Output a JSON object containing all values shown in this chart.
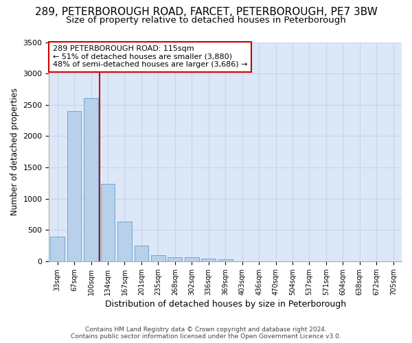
{
  "title_line1": "289, PETERBOROUGH ROAD, FARCET, PETERBOROUGH, PE7 3BW",
  "title_line2": "Size of property relative to detached houses in Peterborough",
  "xlabel": "Distribution of detached houses by size in Peterborough",
  "ylabel": "Number of detached properties",
  "footer_line1": "Contains HM Land Registry data © Crown copyright and database right 2024.",
  "footer_line2": "Contains public sector information licensed under the Open Government Licence v3.0.",
  "bins": [
    "33sqm",
    "67sqm",
    "100sqm",
    "134sqm",
    "167sqm",
    "201sqm",
    "235sqm",
    "268sqm",
    "302sqm",
    "336sqm",
    "369sqm",
    "403sqm",
    "436sqm",
    "470sqm",
    "504sqm",
    "537sqm",
    "571sqm",
    "604sqm",
    "638sqm",
    "672sqm",
    "705sqm"
  ],
  "values": [
    390,
    2400,
    2610,
    1240,
    640,
    255,
    100,
    65,
    60,
    45,
    35,
    0,
    0,
    0,
    0,
    0,
    0,
    0,
    0,
    0,
    0
  ],
  "bar_color": "#b8d0ea",
  "bar_edge_color": "#6aaad4",
  "grid_color": "#c8d4e8",
  "background_color": "#dce8f8",
  "vline_color": "#cc0000",
  "annotation_text": "289 PETERBOROUGH ROAD: 115sqm\n← 51% of detached houses are smaller (3,880)\n48% of semi-detached houses are larger (3,686) →",
  "annotation_box_color": "#cc0000",
  "ylim": [
    0,
    3500
  ],
  "yticks": [
    0,
    500,
    1000,
    1500,
    2000,
    2500,
    3000,
    3500
  ],
  "title_fontsize": 11,
  "subtitle_fontsize": 9.5
}
